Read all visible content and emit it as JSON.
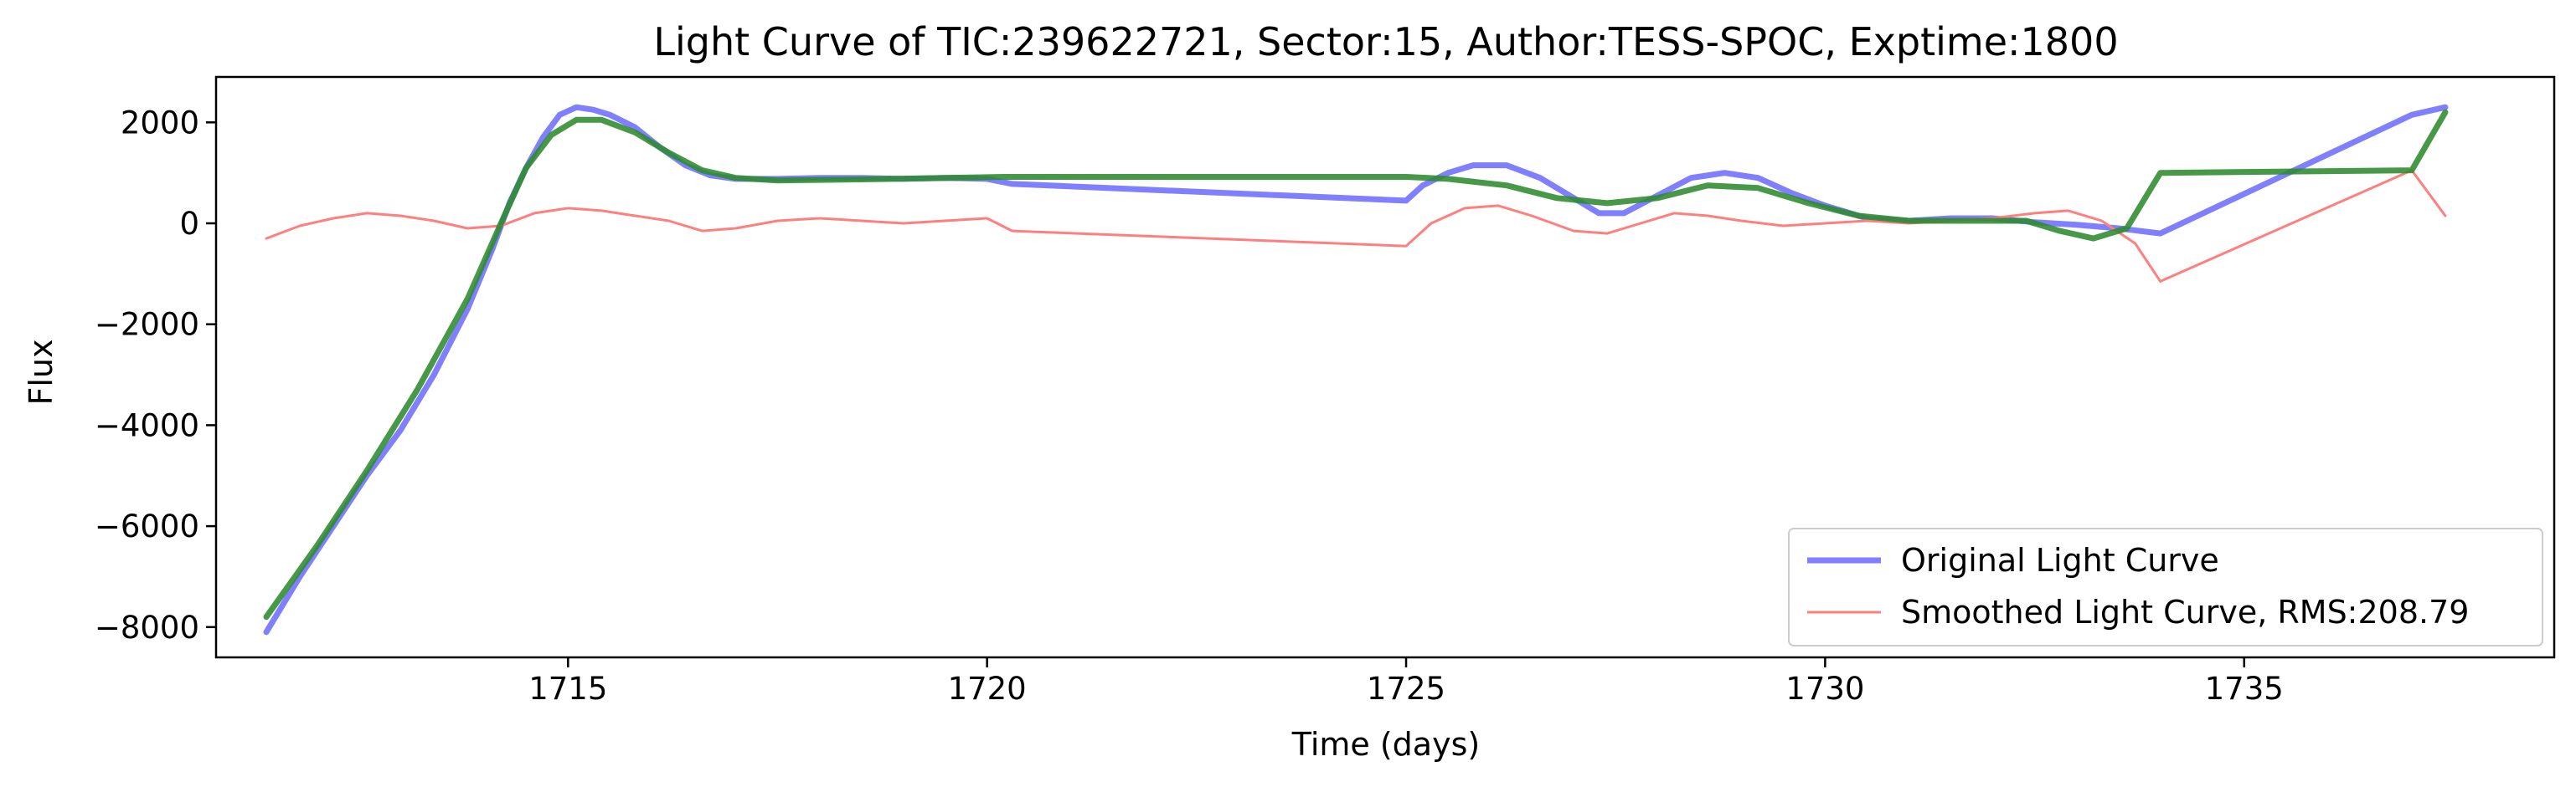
{
  "chart_data": {
    "type": "line",
    "title": "Light Curve of TIC:239622721, Sector:15, Author:TESS-SPOC, Exptime:1800",
    "xlabel": "Time (days)",
    "ylabel": "Flux",
    "xlim": [
      1710.8,
      1738.7
    ],
    "ylim": [
      -8600,
      2900
    ],
    "xticks": [
      1715,
      1720,
      1725,
      1730,
      1735
    ],
    "xtick_labels": [
      "1715",
      "1720",
      "1725",
      "1730",
      "1735"
    ],
    "yticks": [
      2000,
      0,
      -2000,
      -4000,
      -6000,
      -8000
    ],
    "ytick_labels": [
      "2000",
      "0",
      "−2000",
      "−4000",
      "−6000",
      "−8000"
    ],
    "grid": false,
    "legend_location": "lower right",
    "series": [
      {
        "name": "Original Light Curve",
        "color": "#7f7fff",
        "points": [
          [
            1711.4,
            -8100
          ],
          [
            1711.8,
            -7000
          ],
          [
            1712.2,
            -6000
          ],
          [
            1712.6,
            -5000
          ],
          [
            1713.0,
            -4100
          ],
          [
            1713.4,
            -3000
          ],
          [
            1713.8,
            -1700
          ],
          [
            1714.1,
            -500
          ],
          [
            1714.3,
            400
          ],
          [
            1714.5,
            1100
          ],
          [
            1714.7,
            1700
          ],
          [
            1714.9,
            2150
          ],
          [
            1715.1,
            2300
          ],
          [
            1715.3,
            2250
          ],
          [
            1715.5,
            2150
          ],
          [
            1715.8,
            1900
          ],
          [
            1716.1,
            1500
          ],
          [
            1716.4,
            1150
          ],
          [
            1716.7,
            950
          ],
          [
            1717.0,
            880
          ],
          [
            1717.5,
            880
          ],
          [
            1718.0,
            900
          ],
          [
            1718.5,
            900
          ],
          [
            1719.0,
            880
          ],
          [
            1719.5,
            900
          ],
          [
            1720.0,
            880
          ],
          [
            1720.3,
            780
          ],
          [
            1725.0,
            450
          ],
          [
            1725.2,
            750
          ],
          [
            1725.5,
            1000
          ],
          [
            1725.8,
            1150
          ],
          [
            1726.2,
            1150
          ],
          [
            1726.6,
            900
          ],
          [
            1727.0,
            500
          ],
          [
            1727.3,
            200
          ],
          [
            1727.6,
            200
          ],
          [
            1728.0,
            550
          ],
          [
            1728.4,
            900
          ],
          [
            1728.8,
            1000
          ],
          [
            1729.2,
            900
          ],
          [
            1729.6,
            600
          ],
          [
            1730.0,
            350
          ],
          [
            1730.5,
            100
          ],
          [
            1731.0,
            50
          ],
          [
            1731.5,
            100
          ],
          [
            1732.0,
            100
          ],
          [
            1732.5,
            20
          ],
          [
            1733.0,
            -30
          ],
          [
            1733.5,
            -100
          ],
          [
            1734.0,
            -200
          ],
          [
            1737.0,
            2150
          ],
          [
            1737.4,
            2300
          ]
        ]
      },
      {
        "name": "Smoothed Light Curve, RMS:208.79",
        "color": "#ff7f7f",
        "points": [
          [
            1711.4,
            -300
          ],
          [
            1711.8,
            -50
          ],
          [
            1712.2,
            100
          ],
          [
            1712.6,
            200
          ],
          [
            1713.0,
            150
          ],
          [
            1713.4,
            50
          ],
          [
            1713.8,
            -100
          ],
          [
            1714.2,
            -50
          ],
          [
            1714.6,
            200
          ],
          [
            1715.0,
            300
          ],
          [
            1715.4,
            250
          ],
          [
            1715.8,
            150
          ],
          [
            1716.2,
            50
          ],
          [
            1716.6,
            -150
          ],
          [
            1717.0,
            -100
          ],
          [
            1717.5,
            50
          ],
          [
            1718.0,
            100
          ],
          [
            1718.5,
            50
          ],
          [
            1719.0,
            0
          ],
          [
            1719.5,
            50
          ],
          [
            1720.0,
            100
          ],
          [
            1720.3,
            -150
          ],
          [
            1725.0,
            -450
          ],
          [
            1725.3,
            0
          ],
          [
            1725.7,
            300
          ],
          [
            1726.1,
            350
          ],
          [
            1726.5,
            150
          ],
          [
            1727.0,
            -150
          ],
          [
            1727.4,
            -200
          ],
          [
            1727.8,
            0
          ],
          [
            1728.2,
            200
          ],
          [
            1728.6,
            150
          ],
          [
            1729.0,
            50
          ],
          [
            1729.5,
            -50
          ],
          [
            1730.0,
            0
          ],
          [
            1730.5,
            50
          ],
          [
            1731.0,
            0
          ],
          [
            1731.5,
            50
          ],
          [
            1732.0,
            100
          ],
          [
            1732.5,
            200
          ],
          [
            1732.9,
            250
          ],
          [
            1733.3,
            50
          ],
          [
            1733.7,
            -400
          ],
          [
            1734.0,
            -1150
          ],
          [
            1737.0,
            1050
          ],
          [
            1737.4,
            150
          ]
        ]
      },
      {
        "name": "",
        "color": "#2e8b2e",
        "points": [
          [
            1711.4,
            -7800
          ],
          [
            1712.0,
            -6400
          ],
          [
            1712.6,
            -4900
          ],
          [
            1713.2,
            -3300
          ],
          [
            1713.8,
            -1500
          ],
          [
            1714.2,
            0
          ],
          [
            1714.5,
            1100
          ],
          [
            1714.8,
            1750
          ],
          [
            1715.1,
            2050
          ],
          [
            1715.4,
            2050
          ],
          [
            1715.8,
            1800
          ],
          [
            1716.2,
            1400
          ],
          [
            1716.6,
            1050
          ],
          [
            1717.0,
            900
          ],
          [
            1717.5,
            850
          ],
          [
            1718.5,
            870
          ],
          [
            1719.5,
            900
          ],
          [
            1720.2,
            920
          ],
          [
            1725.0,
            920
          ],
          [
            1725.5,
            880
          ],
          [
            1726.2,
            750
          ],
          [
            1726.8,
            500
          ],
          [
            1727.4,
            400
          ],
          [
            1728.0,
            500
          ],
          [
            1728.6,
            750
          ],
          [
            1729.2,
            700
          ],
          [
            1729.8,
            400
          ],
          [
            1730.4,
            150
          ],
          [
            1731.0,
            50
          ],
          [
            1731.8,
            50
          ],
          [
            1732.4,
            50
          ],
          [
            1732.8,
            -150
          ],
          [
            1733.2,
            -300
          ],
          [
            1733.6,
            -100
          ],
          [
            1734.0,
            1000
          ],
          [
            1737.0,
            1050
          ],
          [
            1737.4,
            2200
          ]
        ]
      }
    ]
  }
}
